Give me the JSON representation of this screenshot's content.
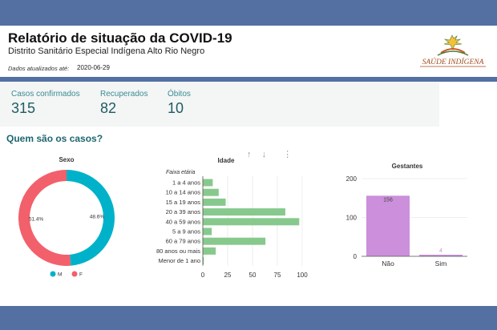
{
  "header": {
    "title": "Relatório de situação da COVID-19",
    "subtitle": "Distrito Sanitário Especial Indígena Alto Rio Negro",
    "updated_label": "Dados atualizados até:",
    "updated_value": "2020-06-29",
    "logo_text": "SAÚDE INDÍGENA"
  },
  "kpis": [
    {
      "label": "Casos confirmados",
      "value": "315"
    },
    {
      "label": "Recuperados",
      "value": "82"
    },
    {
      "label": "Óbitos",
      "value": "10"
    }
  ],
  "section_title": "Quem são os casos?",
  "toolbar": {
    "up": "↑",
    "down": "↓",
    "more": "⋮"
  },
  "colors": {
    "bar_top": "#5470a2",
    "teal": "#1d6670",
    "cyan": "#00b2c9",
    "red": "#f2606b",
    "green": "#87c98d",
    "purple": "#cc8fdb"
  },
  "chart_data": [
    {
      "type": "pie",
      "title": "Sexo",
      "categories": [
        "M",
        "F"
      ],
      "values": [
        48.6,
        51.4
      ],
      "labels": [
        "48.6%",
        "51.4%"
      ],
      "colors": [
        "#00b2c9",
        "#f2606b"
      ],
      "legend": "bottom"
    },
    {
      "type": "bar",
      "orientation": "horizontal",
      "title": "Idade",
      "ylabel": "Faixa etária",
      "categories": [
        "1 a 4 anos",
        "10 a 14 anos",
        "15 a 19 anos",
        "20 a 39 anos",
        "40 a 59 anos",
        "5 a 9 anos",
        "60 a 79 anos",
        "80 anos ou mais",
        "Menor de 1 ano"
      ],
      "values": [
        10,
        16,
        23,
        83,
        97,
        9,
        63,
        13,
        1
      ],
      "xlim": [
        0,
        100
      ],
      "xticks": [
        "0",
        "25",
        "50",
        "75",
        "100"
      ],
      "color": "#87c98d"
    },
    {
      "type": "bar",
      "title": "Gestantes",
      "categories": [
        "Não",
        "Sim"
      ],
      "values": [
        156,
        4
      ],
      "data_labels": [
        "156",
        "4"
      ],
      "ylim": [
        0,
        200
      ],
      "yticks": [
        "0",
        "100",
        "200"
      ],
      "color": "#cc8fdb"
    }
  ]
}
